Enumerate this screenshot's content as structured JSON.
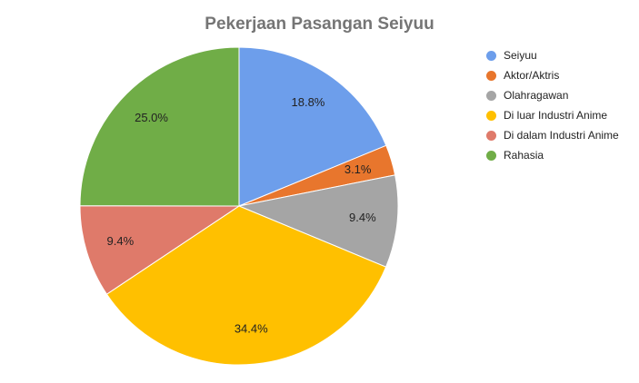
{
  "chart_data": {
    "type": "pie",
    "title": "Pekerjaan Pasangan Seiyuu",
    "legend_position": "right",
    "slices": [
      {
        "label": "Seiyuu",
        "value": 18.8,
        "value_label": "18.8%",
        "color": "#6d9eeb"
      },
      {
        "label": "Aktor/Aktris",
        "value": 3.1,
        "value_label": "3.1%",
        "color": "#e8762d"
      },
      {
        "label": "Olahragawan",
        "value": 9.4,
        "value_label": "9.4%",
        "color": "#a5a5a5"
      },
      {
        "label": "Di luar Industri Anime",
        "value": 34.4,
        "value_label": "34.4%",
        "color": "#ffc000"
      },
      {
        "label": "Di dalam Industri Anime",
        "value": 9.4,
        "value_label": "9.4%",
        "color": "#df7a6a"
      },
      {
        "label": "Rahasia",
        "value": 25.0,
        "value_label": "25.0%",
        "color": "#70ad47"
      }
    ]
  }
}
